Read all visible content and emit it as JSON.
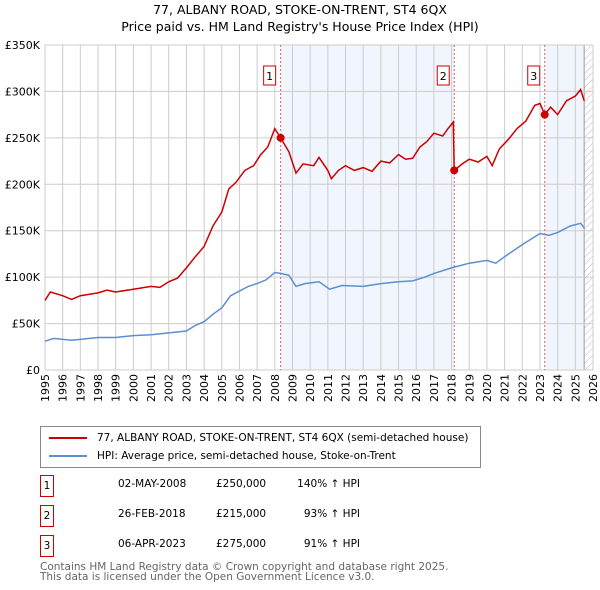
{
  "chart_data": {
    "type": "line",
    "title": "77, ALBANY ROAD, STOKE-ON-TRENT, ST4 6QX",
    "subtitle": "Price paid vs. HM Land Registry's House Price Index (HPI)",
    "xlim": [
      1995,
      2026
    ],
    "ylim": [
      0,
      350000
    ],
    "y_ticks": [
      {
        "v": 0,
        "label": "£0"
      },
      {
        "v": 50000,
        "label": "£50K"
      },
      {
        "v": 100000,
        "label": "£100K"
      },
      {
        "v": 150000,
        "label": "£150K"
      },
      {
        "v": 200000,
        "label": "£200K"
      },
      {
        "v": 250000,
        "label": "£250K"
      },
      {
        "v": 300000,
        "label": "£300K"
      },
      {
        "v": 350000,
        "label": "£350K"
      }
    ],
    "x_ticks": [
      "1995",
      "1996",
      "1997",
      "1998",
      "1999",
      "2000",
      "2001",
      "2002",
      "2003",
      "2004",
      "2005",
      "2006",
      "2007",
      "2008",
      "2009",
      "2010",
      "2011",
      "2012",
      "2013",
      "2014",
      "2015",
      "2016",
      "2017",
      "2018",
      "2019",
      "2020",
      "2021",
      "2022",
      "2023",
      "2024",
      "2025",
      "2026"
    ],
    "grid": true,
    "series": [
      {
        "name": "77, ALBANY ROAD, STOKE-ON-TRENT, ST4 6QX (semi-detached house)",
        "color": "#cc0000",
        "x": [
          1995.0,
          1995.3,
          1996,
          1996.5,
          1997,
          1998,
          1998.5,
          1999,
          2000,
          2001,
          2001.5,
          2002,
          2002.5,
          2003,
          2003.5,
          2004,
          2004.5,
          2005,
          2005.4,
          2005.8,
          2006.3,
          2006.8,
          2007.2,
          2007.6,
          2008.0,
          2008.33,
          2008.8,
          2009.2,
          2009.6,
          2010.2,
          2010.5,
          2011,
          2011.2,
          2011.6,
          2012,
          2012.5,
          2013,
          2013.5,
          2014,
          2014.5,
          2015,
          2015.4,
          2015.8,
          2016.2,
          2016.6,
          2017,
          2017.5,
          2017.8,
          2018.1,
          2018.15,
          2018.6,
          2019,
          2019.5,
          2020,
          2020.3,
          2020.7,
          2021.2,
          2021.7,
          2022.2,
          2022.7,
          2023.0,
          2023.27,
          2023.6,
          2024.0,
          2024.5,
          2025.0,
          2025.3,
          2025.5
        ],
        "y": [
          75000,
          84000,
          80000,
          76000,
          80000,
          83000,
          86000,
          84000,
          87000,
          90000,
          89000,
          95000,
          99000,
          110000,
          122000,
          133000,
          155000,
          170000,
          195000,
          202000,
          215000,
          220000,
          232000,
          240000,
          260000,
          250000,
          235000,
          212000,
          222000,
          220000,
          229000,
          215000,
          206000,
          215000,
          220000,
          215000,
          218000,
          214000,
          225000,
          223000,
          232000,
          227000,
          228000,
          240000,
          246000,
          255000,
          252000,
          260000,
          267000,
          215000,
          222000,
          227000,
          224000,
          230000,
          220000,
          238000,
          248000,
          260000,
          268000,
          285000,
          287000,
          275000,
          283000,
          275000,
          290000,
          295000,
          302000,
          290000
        ]
      },
      {
        "name": "HPI: Average price, semi-detached house, Stoke-on-Trent",
        "color": "#5b8fd0",
        "x": [
          1995,
          1995.5,
          1996.5,
          1997,
          1998,
          1999,
          2000,
          2001,
          2002,
          2003,
          2003.5,
          2004,
          2004.5,
          2005,
          2005.5,
          2006,
          2006.5,
          2007,
          2007.5,
          2008,
          2008.33,
          2008.8,
          2009.2,
          2009.7,
          2010.5,
          2011.1,
          2011.8,
          2013,
          2014,
          2015,
          2015.8,
          2016.5,
          2017,
          2018,
          2019,
          2020,
          2020.5,
          2021,
          2022,
          2023,
          2023.5,
          2024,
          2024.7,
          2025.3,
          2025.5
        ],
        "y": [
          31000,
          34000,
          32000,
          33000,
          35000,
          35000,
          37000,
          38000,
          40000,
          42000,
          48000,
          52000,
          60000,
          67000,
          80000,
          85000,
          90000,
          93000,
          97000,
          105000,
          104000,
          102000,
          90000,
          93000,
          95000,
          87000,
          91000,
          90000,
          93000,
          95000,
          96000,
          100000,
          104000,
          110000,
          115000,
          118000,
          115000,
          122000,
          135000,
          147000,
          145000,
          148000,
          155000,
          158000,
          153000
        ]
      }
    ],
    "sales": [
      {
        "num": "1",
        "x": 2008.33,
        "price": 250000,
        "date": "02-MAY-2008",
        "price_label": "£250,000",
        "hpi": "140% ↑ HPI"
      },
      {
        "num": "2",
        "x": 2018.15,
        "price": 215000,
        "date": "26-FEB-2018",
        "price_label": "£215,000",
        "hpi": "93% ↑ HPI"
      },
      {
        "num": "3",
        "x": 2023.27,
        "price": 275000,
        "date": "06-APR-2023",
        "price_label": "£275,000",
        "hpi": "91% ↑ HPI"
      }
    ],
    "shaded_ranges": [
      [
        2008.33,
        2018.15
      ],
      [
        2023.27,
        2025.5
      ]
    ],
    "hatched_from": 2025.5,
    "legend_position": "below"
  },
  "footer": {
    "line1": "Contains HM Land Registry data © Crown copyright and database right 2025.",
    "line2": "This data is licensed under the Open Government Licence v3.0."
  }
}
